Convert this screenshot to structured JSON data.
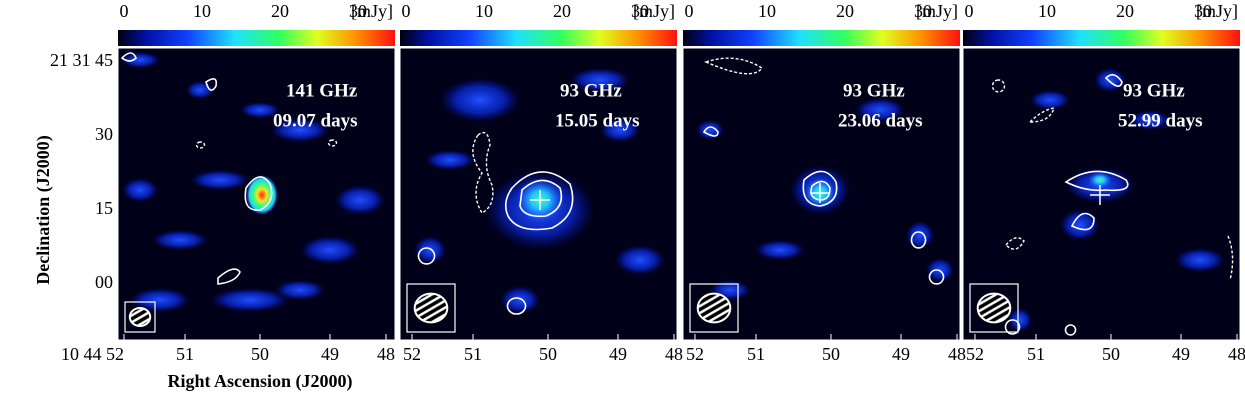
{
  "colorbar": {
    "ticks": [
      0,
      10,
      20,
      30
    ],
    "unit": "[mJy]"
  },
  "y_axis": {
    "label": "Declination (J2000)",
    "ticks": [
      "21 31 45",
      "30",
      "15",
      "00"
    ]
  },
  "x_axis": {
    "label": "Right Ascension (J2000)"
  },
  "panels": [
    {
      "frequency": "141 GHz",
      "epoch": "09.07 days",
      "x_ticks": [
        "10 44 52",
        "51",
        "50",
        "49",
        "48"
      ]
    },
    {
      "frequency": "93 GHz",
      "epoch": "15.05 days",
      "x_ticks": [
        "52",
        "51",
        "50",
        "49",
        "48"
      ]
    },
    {
      "frequency": "93 GHz",
      "epoch": "23.06 days",
      "x_ticks": [
        "52",
        "51",
        "50",
        "49",
        "48"
      ]
    },
    {
      "frequency": "93 GHz",
      "epoch": "52.99 days",
      "x_ticks": [
        "52",
        "51",
        "50",
        "49",
        "48"
      ]
    }
  ]
}
